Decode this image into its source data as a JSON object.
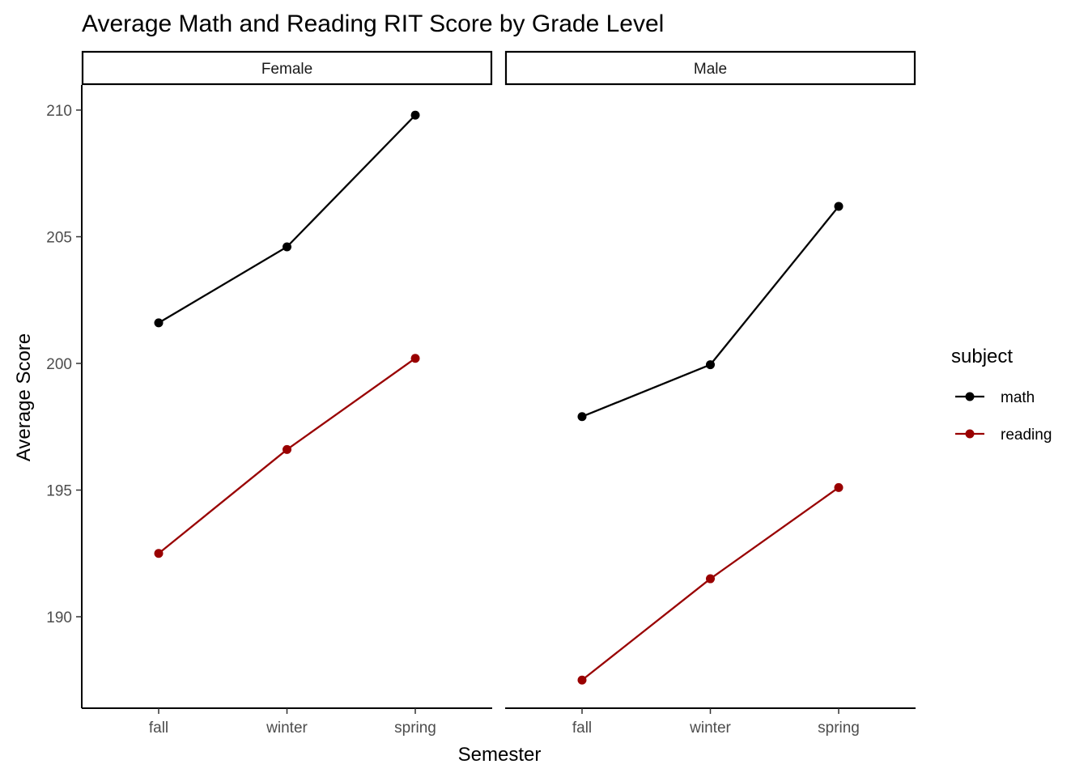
{
  "chart_data": {
    "type": "line",
    "title": "Average Math and Reading RIT Score by Grade Level",
    "xlabel": "Semester",
    "ylabel": "Average Score",
    "categories": [
      "fall",
      "winter",
      "spring"
    ],
    "ylim": [
      186.5,
      211
    ],
    "yticks": [
      190,
      195,
      200,
      205,
      210
    ],
    "grid": false,
    "legend": {
      "title": "subject",
      "position": "right",
      "entries": [
        {
          "name": "math",
          "color": "#000000"
        },
        {
          "name": "reading",
          "color": "#990000"
        }
      ]
    },
    "panels": [
      {
        "facet": "Female",
        "series": [
          {
            "name": "math",
            "color": "#000000",
            "values": [
              201.6,
              204.6,
              209.8
            ]
          },
          {
            "name": "reading",
            "color": "#990000",
            "values": [
              192.5,
              196.6,
              200.2
            ]
          }
        ]
      },
      {
        "facet": "Male",
        "series": [
          {
            "name": "math",
            "color": "#000000",
            "values": [
              197.9,
              199.95,
              206.2
            ]
          },
          {
            "name": "reading",
            "color": "#990000",
            "values": [
              187.5,
              191.5,
              195.1
            ]
          }
        ]
      }
    ]
  }
}
